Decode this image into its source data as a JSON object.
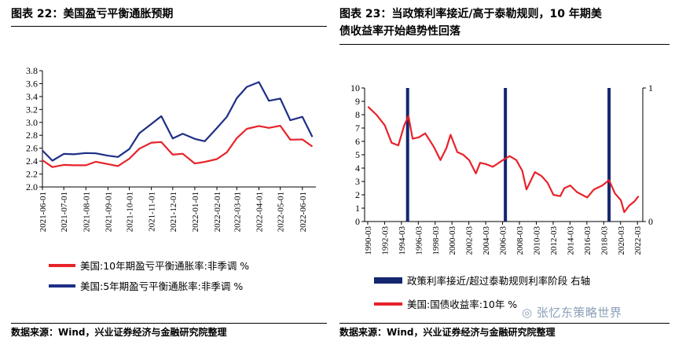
{
  "left": {
    "title": "图表 22：美国盈亏平衡通胀预期",
    "source": "数据来源：Wind，兴业证券经济与金融研究院整理"
  },
  "right": {
    "title_line1": "图表 23：当政策利率接近/高于泰勒规则，10 年期美",
    "title_line2": "债收益率开始趋势性回落",
    "source": "数据来源：Wind，兴业证券经济与金融研究院整理"
  },
  "watermark": "张忆东策略世界",
  "colors": {
    "red": "#e8222a",
    "navy": "#1f2f86",
    "bar": "#14266e",
    "grid": "#000000"
  },
  "chart_data": [
    {
      "type": "line",
      "xlabel": "",
      "ylabel": "",
      "ylim": [
        2.0,
        3.8
      ],
      "yticks": [
        "2.0",
        "2.2",
        "2.4",
        "2.6",
        "2.8",
        "3.0",
        "3.2",
        "3.4",
        "3.6",
        "3.8"
      ],
      "xticks": [
        "2021-06-01",
        "2021-07-01",
        "2021-08-01",
        "2021-09-01",
        "2021-10-01",
        "2021-11-01",
        "2021-12-01",
        "2022-01-01",
        "2022-02-01",
        "2022-03-01",
        "2022-04-01",
        "2022-05-01",
        "2022-06-01"
      ],
      "x": [
        "2021-06-01",
        "2021-06-15",
        "2021-07-01",
        "2021-07-15",
        "2021-08-01",
        "2021-08-15",
        "2021-09-01",
        "2021-09-15",
        "2021-10-01",
        "2021-10-15",
        "2021-11-01",
        "2021-11-15",
        "2021-12-01",
        "2021-12-15",
        "2022-01-01",
        "2022-01-15",
        "2022-02-01",
        "2022-02-15",
        "2022-03-01",
        "2022-03-15",
        "2022-04-01",
        "2022-04-15",
        "2022-05-01",
        "2022-05-15",
        "2022-06-01",
        "2022-06-15"
      ],
      "series": [
        {
          "name": "美国:10年期盈亏平衡通胀率:非季调 %",
          "color": "#e8222a",
          "values": [
            2.45,
            2.32,
            2.33,
            2.3,
            2.36,
            2.39,
            2.33,
            2.36,
            2.45,
            2.58,
            2.65,
            2.72,
            2.5,
            2.49,
            2.4,
            2.4,
            2.42,
            2.5,
            2.78,
            2.9,
            2.92,
            2.95,
            2.96,
            2.72,
            2.7,
            2.65
          ]
        },
        {
          "name": "美国:5年期盈亏平衡通胀率:非季调 %",
          "color": "#1f2f86",
          "values": [
            2.6,
            2.42,
            2.5,
            2.47,
            2.55,
            2.52,
            2.46,
            2.5,
            2.6,
            2.82,
            2.94,
            3.12,
            2.75,
            2.8,
            2.78,
            2.72,
            2.9,
            3.05,
            3.4,
            3.55,
            3.6,
            3.37,
            3.38,
            3.02,
            3.05,
            2.8
          ]
        }
      ],
      "legend_position": "bottom"
    },
    {
      "type": "line",
      "xlabel": "",
      "ylabel": "",
      "ylim": [
        0,
        10
      ],
      "y2lim": [
        0,
        1
      ],
      "yticks": [
        "0",
        "1",
        "2",
        "3",
        "4",
        "5",
        "6",
        "7",
        "8",
        "9",
        "10"
      ],
      "y2ticks": [
        "0",
        "1"
      ],
      "xticks": [
        "1990-03",
        "1992-03",
        "1994-03",
        "1996-03",
        "1998-03",
        "2000-03",
        "2002-03",
        "2004-03",
        "2006-03",
        "2008-03",
        "2010-03",
        "2012-03",
        "2014-03",
        "2016-03",
        "2018-03",
        "2020-03",
        "2022-03"
      ],
      "x": [
        1990.2,
        1991.2,
        1992.2,
        1993.0,
        1993.8,
        1994.5,
        1995.0,
        1995.5,
        1996.2,
        1997.0,
        1998.0,
        1998.8,
        1999.5,
        2000.0,
        2000.8,
        2001.5,
        2002.2,
        2003.0,
        2003.5,
        2004.2,
        2005.0,
        2005.5,
        2006.2,
        2007.0,
        2007.8,
        2008.5,
        2009.0,
        2010.0,
        2010.8,
        2011.5,
        2012.2,
        2013.0,
        2013.5,
        2014.2,
        2015.0,
        2016.2,
        2017.0,
        2018.0,
        2018.8,
        2019.5,
        2020.2,
        2020.6,
        2021.2,
        2021.8,
        2022.3
      ],
      "series": [
        {
          "name": "美国:国债收益率:10年 %",
          "color": "#e8222a",
          "values": [
            8.6,
            8.0,
            7.2,
            5.9,
            5.7,
            7.2,
            7.9,
            6.2,
            6.3,
            6.6,
            5.6,
            4.6,
            5.5,
            6.5,
            5.2,
            5.0,
            4.6,
            3.6,
            4.4,
            4.3,
            4.1,
            4.3,
            4.6,
            4.9,
            4.6,
            3.8,
            2.4,
            3.7,
            3.4,
            2.9,
            2.0,
            1.9,
            2.5,
            2.7,
            2.2,
            1.8,
            2.4,
            2.7,
            3.1,
            2.1,
            1.6,
            0.7,
            1.2,
            1.5,
            1.9
          ]
        },
        {
          "name": "政策利率接近/超过泰勒规则利率阶段 右轴",
          "color": "#14266e",
          "bars_at": [
            1994.9,
            2006.5,
            2018.8
          ],
          "bar_value": 1
        }
      ],
      "legend_position": "bottom"
    }
  ]
}
